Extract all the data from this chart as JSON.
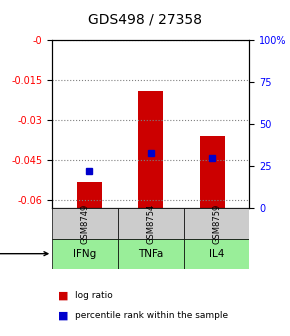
{
  "title": "GDS498 / 27358",
  "samples": [
    "GSM8749",
    "GSM8754",
    "GSM8759"
  ],
  "agents": [
    "IFNg",
    "TNFa",
    "IL4"
  ],
  "log_ratios": [
    -0.053,
    -0.019,
    -0.036
  ],
  "percentile_ranks": [
    22,
    33,
    30
  ],
  "ylim_left": [
    -0.063,
    0.0
  ],
  "ylim_right": [
    0,
    100
  ],
  "yticks_left": [
    0,
    -0.015,
    -0.03,
    -0.045,
    -0.06
  ],
  "yticks_right": [
    0,
    25,
    50,
    75,
    100
  ],
  "bar_color": "#cc0000",
  "square_color": "#0000cc",
  "agent_bg_color": "#99ee99",
  "sample_bg_color": "#cccccc",
  "legend_items": [
    "log ratio",
    "percentile rank within the sample"
  ],
  "legend_colors": [
    "#cc0000",
    "#0000cc"
  ]
}
